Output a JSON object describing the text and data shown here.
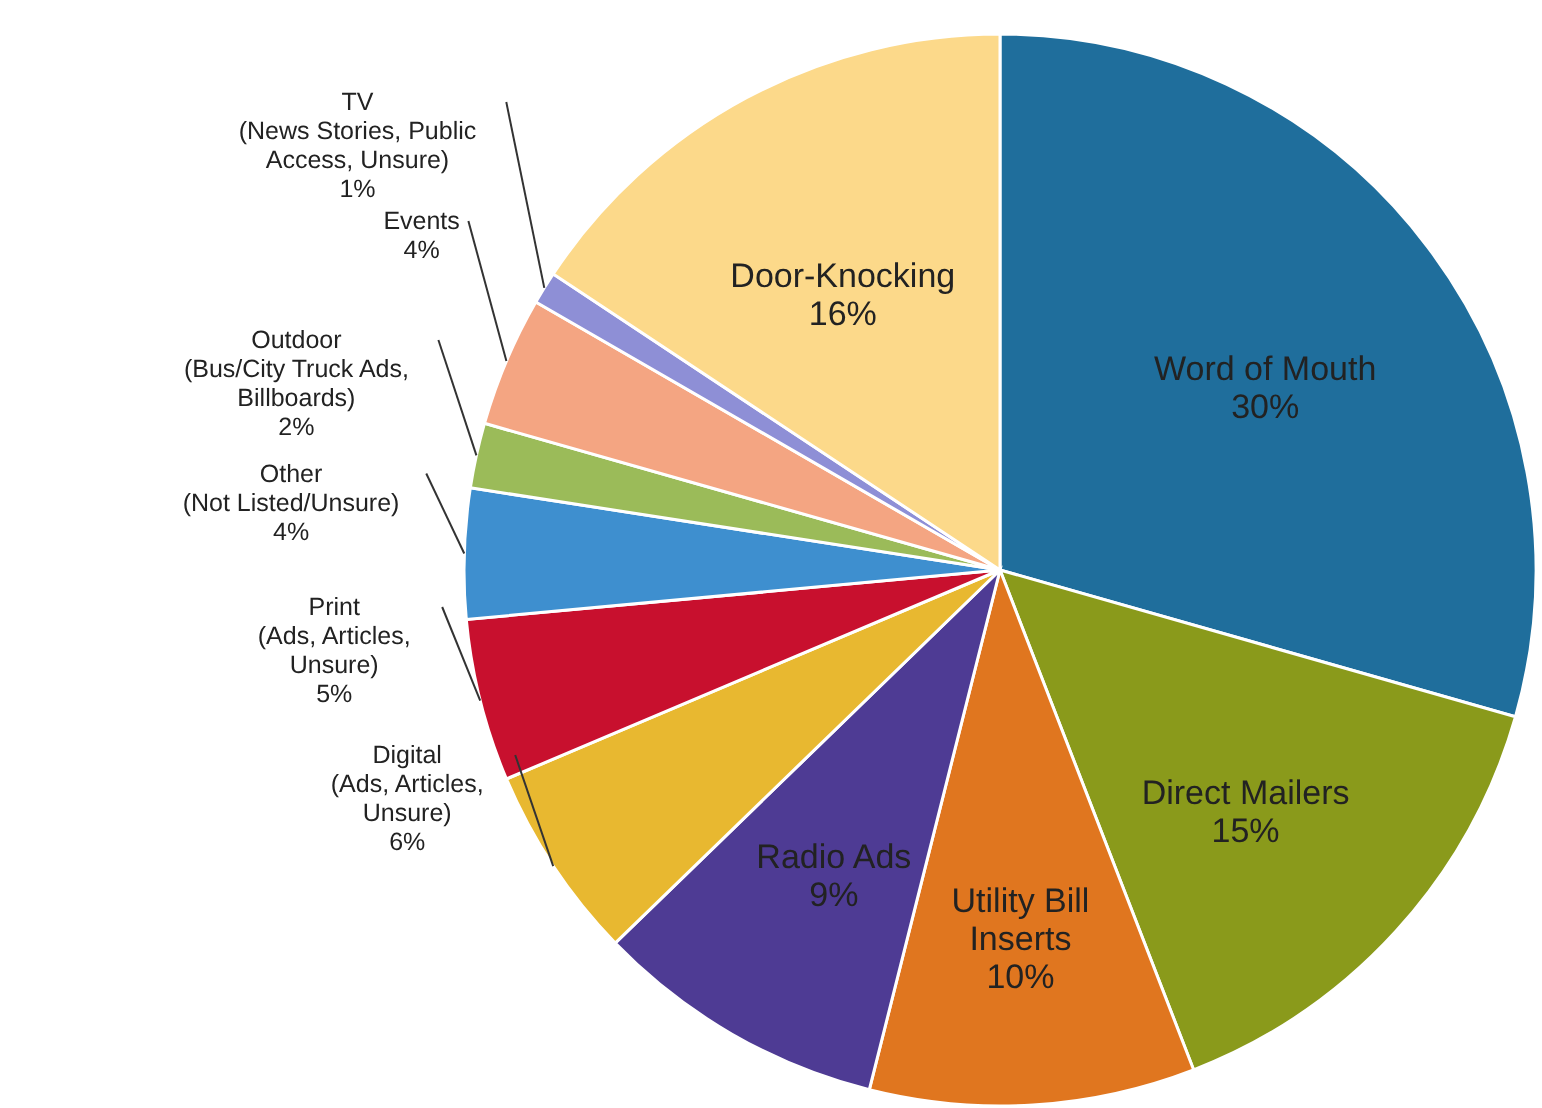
{
  "chart_data": {
    "type": "pie",
    "categories": [
      "Word of Mouth",
      "Direct Mailers",
      "Utility Bill Inserts",
      "Radio Ads",
      "Digital (Ads, Articles, Unsure)",
      "Print (Ads, Articles, Unsure)",
      "Other (Not Listed/Unsure)",
      "Outdoor (Bus/City Truck Ads, Billboards)",
      "Events",
      "TV (News Stories, Public Access, Unsure)",
      "Door-Knocking"
    ],
    "values": [
      30,
      15,
      10,
      9,
      6,
      5,
      4,
      2,
      4,
      1,
      16
    ],
    "value_labels": [
      "30%",
      "15%",
      "10%",
      "9%",
      "6%",
      "5%",
      "4%",
      "2%",
      "4%",
      "1%",
      "16%"
    ],
    "colors": [
      "#1f6e9c",
      "#8a9a1b",
      "#e0761f",
      "#4e3b94",
      "#e8b830",
      "#c8102e",
      "#3e8fcf",
      "#9bbb59",
      "#f4a582",
      "#8e8fd6",
      "#fcd98a"
    ]
  }
}
